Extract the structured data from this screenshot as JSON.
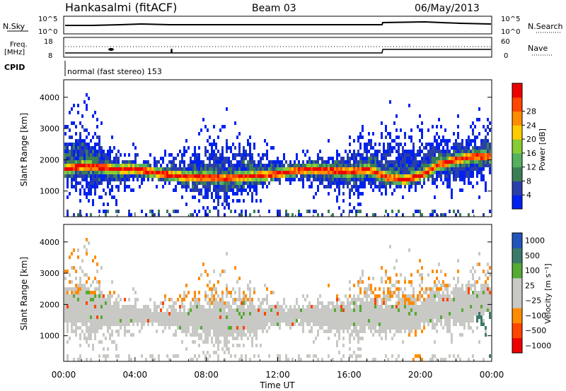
{
  "header": {
    "station": "Hankasalmi (fitACF)",
    "beam": "Beam 03",
    "date": "06/May/2013"
  },
  "strips": {
    "nsky_label": "N.Sky",
    "nsearch_label": "N.Search",
    "log_top": "10^5",
    "log_bottom": "10^0",
    "freq_label_line1": "Freq.",
    "freq_label_line2": "[MHz]",
    "freq_ticks": [
      "18",
      "8"
    ],
    "nave_ticks": [
      "60",
      "0"
    ],
    "nave_label": "Nave",
    "cpid_label": "CPID",
    "cpid_text": "normal (fast stereo) 153"
  },
  "x_axis": {
    "label": "Time UT",
    "ticks": [
      "00:00",
      "04:00",
      "08:00",
      "12:00",
      "16:00",
      "20:00",
      "00:00"
    ]
  },
  "colors": {
    "power_scale": [
      "#0022ee",
      "#2a3fa8",
      "#3b7d54",
      "#55b060",
      "#88cc33",
      "#ffcc00",
      "#ff8c00",
      "#ff4500",
      "#ee0000"
    ],
    "velocity_scale": [
      "#ee0000",
      "#ff4500",
      "#ff8c00",
      "#c8c8c4",
      "#c8c8c4",
      "#55aa33",
      "#3a7a6a",
      "#2255bb",
      "#2233aa"
    ],
    "ground_scatter": "#c8c8c4"
  },
  "chart_data": [
    {
      "type": "heatmap",
      "name": "power",
      "xlabel": "Time UT",
      "ylabel": "Slant Range [km]",
      "ylim": [
        180,
        4560
      ],
      "xlim": [
        0,
        24
      ],
      "yticks": [
        "1000",
        "2000",
        "3000",
        "4000"
      ],
      "colorbar_label": "Power [dB]",
      "colorbar_ticks": [
        "4",
        "8",
        "12",
        "16",
        "20",
        "24",
        "28"
      ],
      "band_center_km": [
        [
          0,
          1700
        ],
        [
          1,
          1800
        ],
        [
          2,
          1750
        ],
        [
          3,
          1700
        ],
        [
          4,
          1700
        ],
        [
          5,
          1600
        ],
        [
          6,
          1500
        ],
        [
          7,
          1450
        ],
        [
          8,
          1450
        ],
        [
          9,
          1400
        ],
        [
          10,
          1450
        ],
        [
          11,
          1500
        ],
        [
          12,
          1550
        ],
        [
          13,
          1650
        ],
        [
          14,
          1700
        ],
        [
          15,
          1650
        ],
        [
          16,
          1600
        ],
        [
          17,
          1700
        ],
        [
          18,
          1450
        ],
        [
          19,
          1350
        ],
        [
          20,
          1500
        ],
        [
          21,
          1850
        ],
        [
          22,
          2000
        ],
        [
          23,
          2100
        ],
        [
          24,
          2100
        ]
      ]
    },
    {
      "type": "heatmap",
      "name": "velocity",
      "xlabel": "Time UT",
      "ylabel": "Slant Range [km]",
      "ylim": [
        180,
        4560
      ],
      "xlim": [
        0,
        24
      ],
      "yticks": [
        "1000",
        "2000",
        "3000",
        "4000"
      ],
      "colorbar_label": "Velocity [m s⁻¹]",
      "colorbar_ticks": [
        "1000",
        "500",
        "100",
        "25",
        "−25",
        "−100",
        "−500",
        "−1000"
      ]
    }
  ]
}
